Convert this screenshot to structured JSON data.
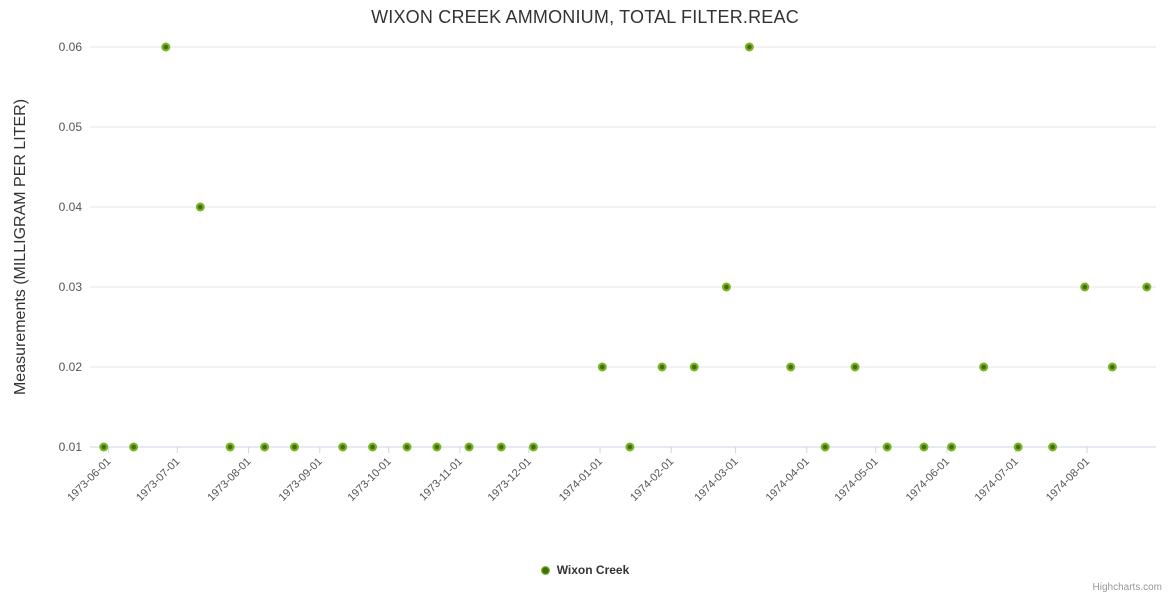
{
  "header": {
    "title": "WIXON CREEK AMMONIUM, TOTAL FILTER.REAC"
  },
  "chart_data": {
    "type": "scatter",
    "title": "WIXON CREEK AMMONIUM, TOTAL FILTER.REAC",
    "xlabel": "",
    "ylabel": "Measurements (MILLIGRAM PER LITER)",
    "grid": true,
    "legend_position": "bottom-center",
    "x_range": [
      "1973-05-24",
      "1974-08-31"
    ],
    "y_range": [
      0.01,
      0.06
    ],
    "y_ticks": [
      "0.01",
      "0.02",
      "0.03",
      "0.04",
      "0.05",
      "0.06"
    ],
    "x_ticks": [
      "1973-06-01",
      "1973-07-01",
      "1973-08-01",
      "1973-09-01",
      "1973-10-01",
      "1973-11-01",
      "1973-12-01",
      "1974-01-01",
      "1974-02-01",
      "1974-03-01",
      "1974-04-01",
      "1974-05-01",
      "1974-06-01",
      "1974-07-01",
      "1974-08-01"
    ],
    "series": [
      {
        "name": "Wixon Creek",
        "marker_color_outer": "#7cb41e",
        "marker_color_inner": "#3e6d10",
        "points": [
          {
            "x": "1973-05-30",
            "y": 0.01
          },
          {
            "x": "1973-06-12",
            "y": 0.01
          },
          {
            "x": "1973-06-26",
            "y": 0.06
          },
          {
            "x": "1973-07-11",
            "y": 0.04
          },
          {
            "x": "1973-07-24",
            "y": 0.01
          },
          {
            "x": "1973-08-08",
            "y": 0.01
          },
          {
            "x": "1973-08-21",
            "y": 0.01
          },
          {
            "x": "1973-09-11",
            "y": 0.01
          },
          {
            "x": "1973-09-24",
            "y": 0.01
          },
          {
            "x": "1973-10-09",
            "y": 0.01
          },
          {
            "x": "1973-10-22",
            "y": 0.01
          },
          {
            "x": "1973-11-05",
            "y": 0.01
          },
          {
            "x": "1973-11-19",
            "y": 0.01
          },
          {
            "x": "1973-12-03",
            "y": 0.01
          },
          {
            "x": "1974-01-02",
            "y": 0.02
          },
          {
            "x": "1974-01-14",
            "y": 0.01
          },
          {
            "x": "1974-01-28",
            "y": 0.02
          },
          {
            "x": "1974-02-11",
            "y": 0.02
          },
          {
            "x": "1974-02-25",
            "y": 0.03
          },
          {
            "x": "1974-03-07",
            "y": 0.06
          },
          {
            "x": "1974-03-25",
            "y": 0.02
          },
          {
            "x": "1974-04-09",
            "y": 0.01
          },
          {
            "x": "1974-04-22",
            "y": 0.02
          },
          {
            "x": "1974-05-06",
            "y": 0.01
          },
          {
            "x": "1974-05-22",
            "y": 0.01
          },
          {
            "x": "1974-06-03",
            "y": 0.01
          },
          {
            "x": "1974-06-17",
            "y": 0.02
          },
          {
            "x": "1974-07-02",
            "y": 0.01
          },
          {
            "x": "1974-07-17",
            "y": 0.01
          },
          {
            "x": "1974-07-31",
            "y": 0.03
          },
          {
            "x": "1974-08-12",
            "y": 0.02
          },
          {
            "x": "1974-08-27",
            "y": 0.03
          }
        ]
      }
    ]
  },
  "legend": {
    "items": [
      {
        "label": "Wixon Creek",
        "color": "#7cb41e"
      }
    ]
  },
  "credit": {
    "label": "Highcharts.com"
  },
  "colors": {
    "title": "#333333",
    "axis_title": "#333333",
    "tick_label": "#555555",
    "grid_line": "#e6e6e6",
    "axis_line": "#ccd6eb",
    "legend_text": "#333333",
    "credit_text": "#999999"
  }
}
